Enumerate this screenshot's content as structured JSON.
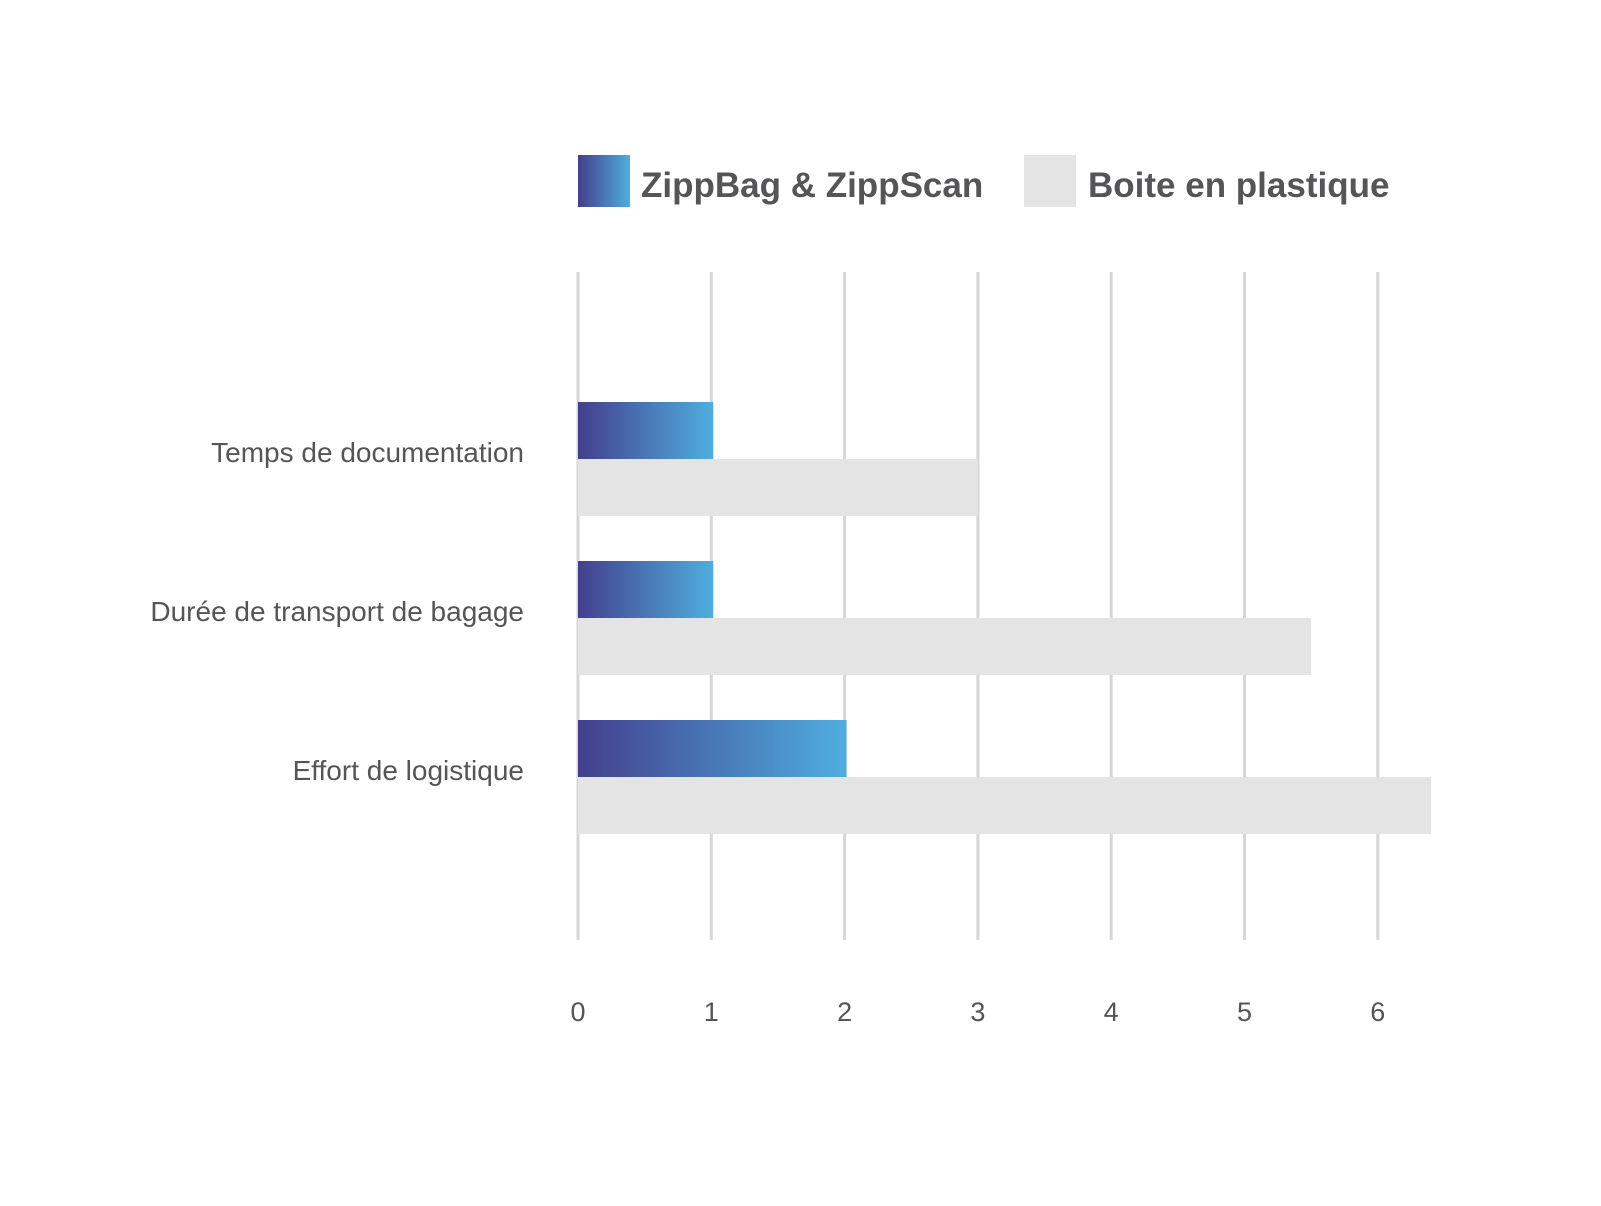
{
  "chart_data": {
    "type": "bar",
    "orientation": "horizontal",
    "categories": [
      "Temps de documentation",
      "Durée de transport de bagage",
      "Effort de logistique"
    ],
    "series": [
      {
        "name": "ZippBag & ZippScan",
        "values": [
          1,
          1,
          2
        ],
        "color_start": "#433f8c",
        "color_end": "#4faedf"
      },
      {
        "name": "Boite en plastique",
        "values": [
          3,
          5.5,
          6.4
        ],
        "color": "#e4e4e4"
      }
    ],
    "xlim": [
      0,
      6.4
    ],
    "x_ticks": [
      "0",
      "1",
      "2",
      "3",
      "4",
      "5",
      "6"
    ],
    "grid": "vertical",
    "grid_color": "#d6d6d6",
    "text_color": "#555557",
    "legend_position": "top"
  }
}
